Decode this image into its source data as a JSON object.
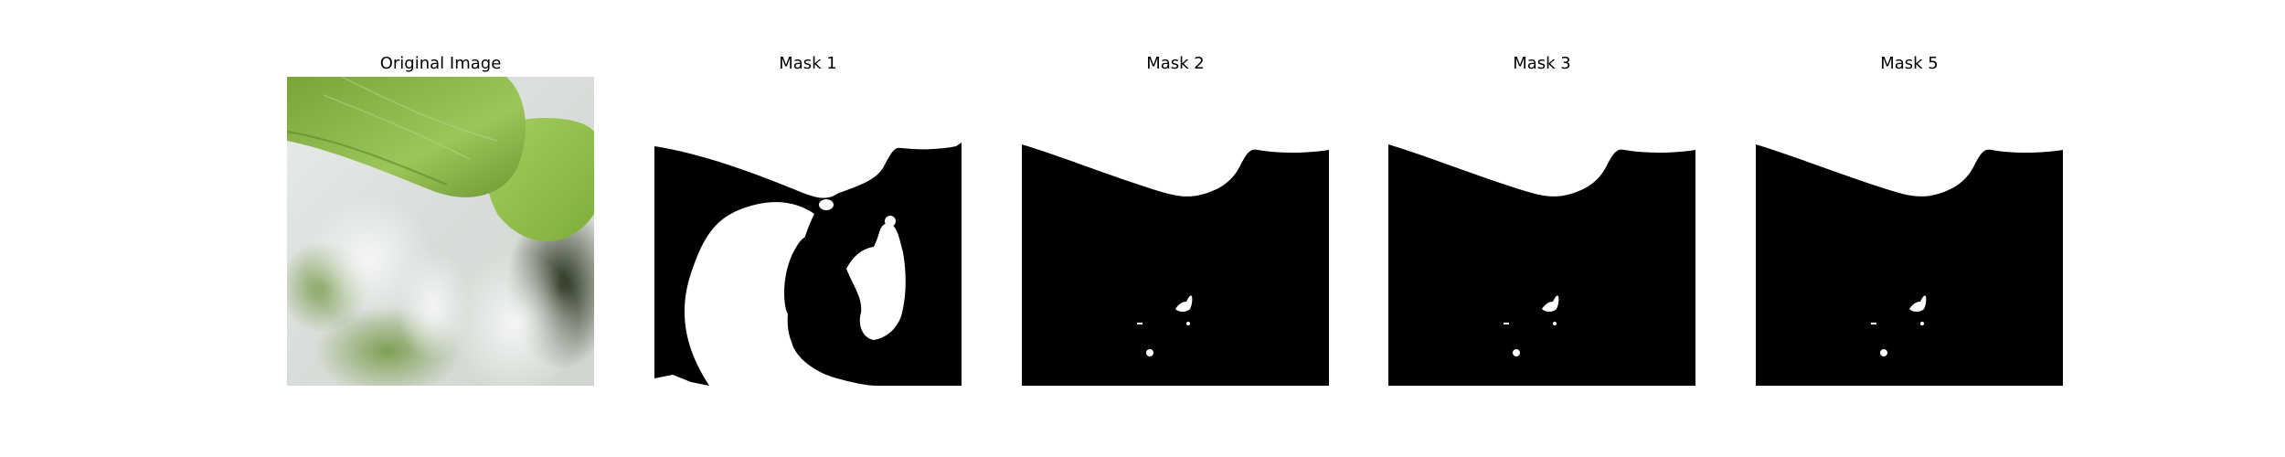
{
  "figure": {
    "panels": [
      {
        "title": "Original Image",
        "kind": "photo"
      },
      {
        "title": "Mask 1",
        "kind": "mask"
      },
      {
        "title": "Mask 2",
        "kind": "mask"
      },
      {
        "title": "Mask 3",
        "kind": "mask"
      },
      {
        "title": "Mask 5",
        "kind": "mask"
      }
    ]
  },
  "colors": {
    "background": "#ffffff",
    "mask_foreground": "#ffffff",
    "mask_background": "#000000",
    "leaf_green": "#8db84a",
    "leaf_dark": "#5f8f2f"
  }
}
